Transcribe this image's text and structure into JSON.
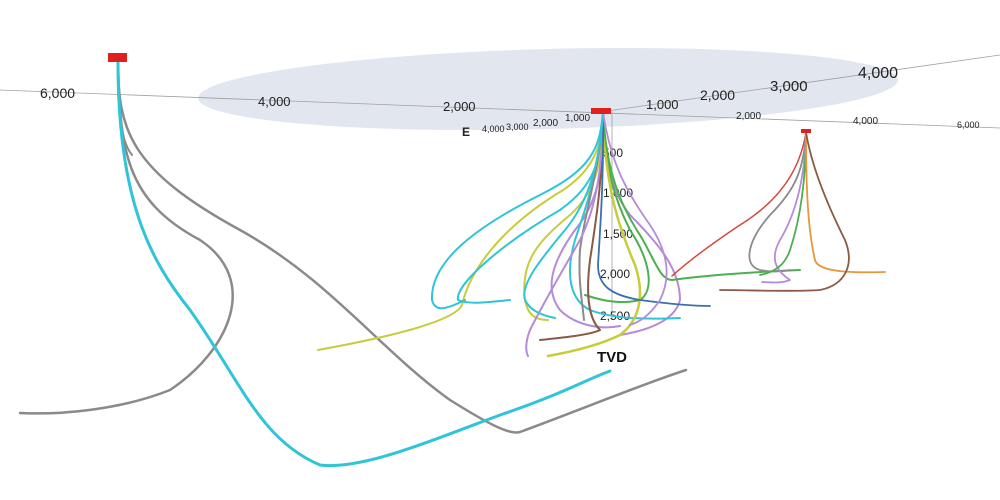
{
  "scene": {
    "axis_label_east": "E",
    "axis_label_depth": "TVD",
    "x_ticks_far": [
      "6,000",
      "4,000",
      "2,000",
      "1,000"
    ],
    "x_ticks_near": [
      "4,000",
      "3,000",
      "2,000",
      "1,000"
    ],
    "y_ticks_far": [
      "1,000",
      "2,000",
      "3,000",
      "4,000"
    ],
    "y_ticks_right": [
      "2,000",
      "4,000",
      "6,000"
    ],
    "depth_ticks": [
      "500",
      "1,000",
      "1,500",
      "2,000",
      "2,500"
    ]
  },
  "colors": {
    "grey_well": "#8a8a8a",
    "cyan_well": "#2fc4d8",
    "yellow_well": "#c8cc3a",
    "purple_well": "#b58bd6",
    "green_well": "#4caf50",
    "brown_well": "#8a5a44",
    "orange_well": "#e8963a",
    "red_well": "#d9443a",
    "wellhead": "#e02020",
    "surface_plane": "#dde2ec"
  }
}
